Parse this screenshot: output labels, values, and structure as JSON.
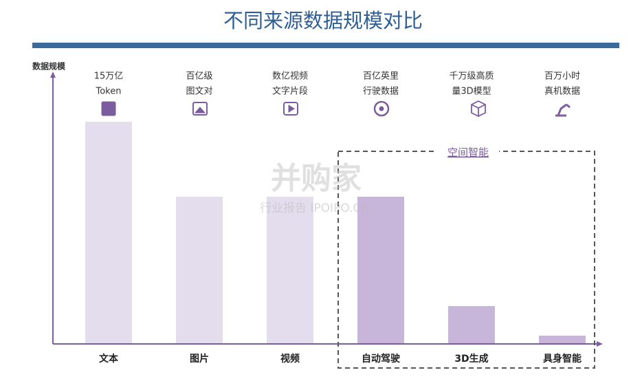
{
  "chart_data": {
    "type": "bar",
    "title": "不同来源数据规模对比",
    "y_label": "数据规模",
    "categories": [
      "文本",
      "图片",
      "视频",
      "自动驾驶",
      "3D生成",
      "具身智能"
    ],
    "values": [
      323,
      214,
      214,
      214,
      55,
      12
    ],
    "colors": [
      "#e4dded",
      "#e4dded",
      "#e4dded",
      "#c8b6da",
      "#c8b6da",
      "#c8b6da"
    ],
    "annotations": [
      [
        "15万亿",
        "Token"
      ],
      [
        "百亿级",
        "图文对"
      ],
      [
        "数亿视频",
        "文字片段"
      ],
      [
        "百亿英里",
        "行驶数据"
      ],
      [
        "千万级高质",
        "量3D模型"
      ],
      [
        "百万小时",
        "真机数据"
      ]
    ],
    "group_label": "空间智能",
    "watermark": [
      "并购家",
      "行业报告 IPOIPO.CN"
    ],
    "ylim": [
      0,
      390
    ]
  }
}
